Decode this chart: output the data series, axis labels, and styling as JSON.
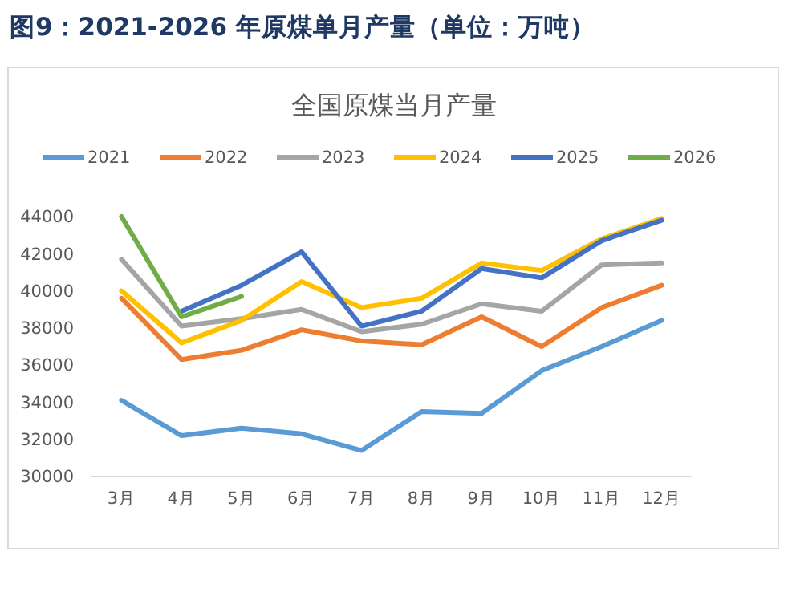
{
  "chart_data": {
    "type": "line",
    "title": "图9：2021-2026 年原煤单月产量（单位：万吨）",
    "subtitle": "全国原煤当月产量",
    "categories": [
      "3月",
      "4月",
      "5月",
      "6月",
      "7月",
      "8月",
      "9月",
      "10月",
      "11月",
      "12月"
    ],
    "series": [
      {
        "name": "2021",
        "color": "#5b9bd5",
        "values": [
          34100,
          32200,
          32600,
          32300,
          31400,
          33500,
          33400,
          35700,
          37000,
          38400
        ]
      },
      {
        "name": "2022",
        "color": "#ed7d31",
        "values": [
          39600,
          36300,
          36800,
          37900,
          37300,
          37100,
          38600,
          37000,
          39100,
          40300
        ]
      },
      {
        "name": "2023",
        "color": "#a5a5a5",
        "values": [
          41700,
          38100,
          38500,
          39000,
          37800,
          38200,
          39300,
          38900,
          41400,
          41500
        ]
      },
      {
        "name": "2024",
        "color": "#ffc000",
        "values": [
          40000,
          37200,
          38400,
          40500,
          39100,
          39600,
          41500,
          41100,
          42800,
          43900
        ]
      },
      {
        "name": "2025",
        "color": "#4472c4",
        "values": [
          null,
          38900,
          40300,
          42100,
          38100,
          38900,
          41200,
          40700,
          42700,
          43800
        ]
      },
      {
        "name": "2026",
        "color": "#70ad47",
        "values": [
          44000,
          38600,
          39700,
          null,
          null,
          null,
          null,
          null,
          null,
          null
        ]
      }
    ],
    "ylim": [
      30000,
      44000
    ],
    "yticks": [
      30000,
      32000,
      34000,
      36000,
      38000,
      40000,
      42000,
      44000
    ],
    "grid": false,
    "legend": "top",
    "marker": "none",
    "line_style": "solid"
  }
}
